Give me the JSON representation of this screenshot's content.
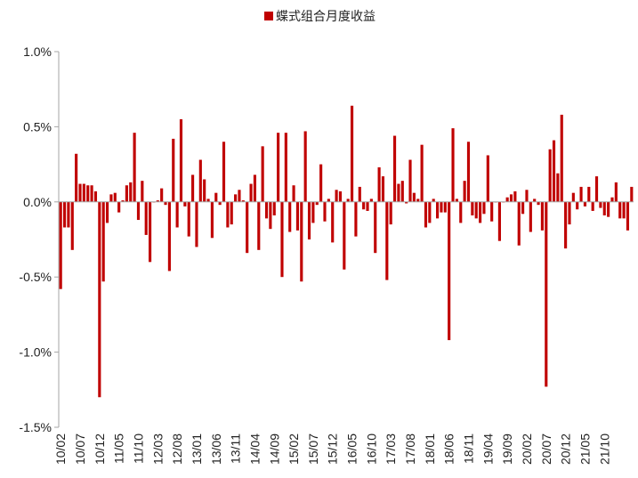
{
  "chart_data": {
    "type": "bar",
    "title": "",
    "xlabel": "",
    "ylabel": "",
    "ylim": [
      -1.5,
      1.0
    ],
    "y_ticks": [
      -1.5,
      -1.0,
      -0.5,
      0.0,
      0.5,
      1.0
    ],
    "y_tick_labels": [
      "-1.5%",
      "-1.0%",
      "-0.5%",
      "0.0%",
      "0.5%",
      "1.0%"
    ],
    "y_unit": "%",
    "grid": false,
    "legend": {
      "placement": "top-center"
    },
    "series": [
      {
        "name": "蝶式组合月度收益",
        "color": "#C00000",
        "values": [
          -0.58,
          -0.17,
          -0.17,
          -0.32,
          0.32,
          0.12,
          0.12,
          0.11,
          0.11,
          0.07,
          -1.3,
          -0.53,
          -0.14,
          0.05,
          0.06,
          -0.07,
          0.01,
          0.11,
          0.13,
          0.46,
          -0.12,
          0.14,
          -0.22,
          -0.4,
          0.0,
          0.01,
          0.09,
          -0.02,
          -0.46,
          0.42,
          -0.17,
          0.55,
          -0.03,
          -0.23,
          0.18,
          -0.3,
          0.28,
          0.15,
          0.02,
          -0.24,
          0.06,
          -0.02,
          0.4,
          -0.17,
          -0.15,
          0.05,
          0.08,
          0.01,
          -0.34,
          0.12,
          0.18,
          -0.32,
          0.37,
          -0.11,
          -0.18,
          -0.09,
          0.46,
          -0.5,
          0.46,
          -0.2,
          0.11,
          -0.19,
          -0.53,
          0.47,
          -0.25,
          -0.14,
          -0.02,
          0.25,
          -0.13,
          0.02,
          -0.27,
          0.08,
          0.07,
          -0.45,
          0.02,
          0.64,
          -0.23,
          0.1,
          -0.05,
          -0.06,
          0.02,
          -0.34,
          0.23,
          0.17,
          -0.52,
          -0.15,
          0.44,
          0.12,
          0.14,
          -0.01,
          0.28,
          0.06,
          0.02,
          0.38,
          -0.17,
          -0.14,
          0.02,
          -0.11,
          -0.07,
          -0.07,
          -0.92,
          0.49,
          0.02,
          -0.14,
          0.14,
          0.4,
          -0.09,
          -0.11,
          -0.14,
          -0.08,
          0.31,
          -0.13,
          0.0,
          -0.26,
          0.0,
          0.03,
          0.05,
          0.07,
          -0.29,
          -0.08,
          0.08,
          -0.2,
          0.02,
          -0.02,
          -0.19,
          -1.23,
          0.35,
          0.41,
          0.19,
          0.58,
          -0.31,
          -0.15,
          0.06,
          -0.05,
          0.1,
          -0.03,
          0.1,
          -0.06,
          0.17,
          -0.04,
          -0.09,
          -0.1,
          0.03,
          0.13,
          -0.11,
          -0.11,
          -0.19,
          0.1
        ]
      }
    ],
    "x_tick_labels": [
      "10/02",
      "10/07",
      "10/12",
      "11/05",
      "11/10",
      "12/03",
      "12/08",
      "13/01",
      "13/06",
      "13/11",
      "14/04",
      "14/09",
      "15/02",
      "15/07",
      "15/12",
      "16/05",
      "16/10",
      "17/03",
      "17/08",
      "18/01",
      "18/06",
      "18/11",
      "19/04",
      "19/09",
      "20/02",
      "20/07",
      "20/12",
      "21/05",
      "21/10"
    ],
    "x_tick_every": 5
  }
}
